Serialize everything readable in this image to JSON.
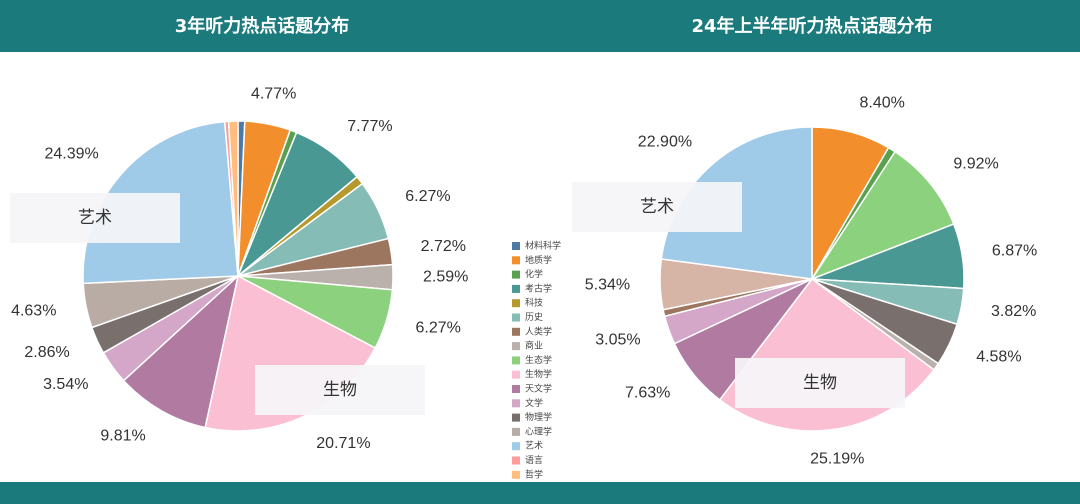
{
  "chart_data": [
    {
      "type": "pie",
      "title": "3年听力热点话题分布",
      "categories": [
        "材料科学",
        "地质学",
        "化学",
        "考古学",
        "科技",
        "历史",
        "人类学",
        "商业",
        "生态学",
        "生物学",
        "天文学",
        "文学",
        "物理学",
        "心理学",
        "艺术",
        "语言",
        "哲学"
      ],
      "values": [
        0.7,
        4.77,
        0.7,
        7.77,
        0.9,
        6.27,
        2.72,
        2.59,
        6.27,
        20.71,
        9.81,
        3.54,
        2.86,
        4.63,
        24.39,
        0.4,
        0.97
      ],
      "value_labels": [
        null,
        "4.77%",
        null,
        "7.77%",
        null,
        "6.27%",
        "2.72%",
        "2.59%",
        "6.27%",
        "20.71%",
        "9.81%",
        "3.54%",
        "2.86%",
        "4.63%",
        "24.39%",
        null,
        null
      ],
      "colors": [
        "#4e79a7",
        "#f28e2b",
        "#59a14f",
        "#499894",
        "#b6992d",
        "#86bcb6",
        "#9d7660",
        "#bab0ac",
        "#8cd17d",
        "#fabfd2",
        "#b07aa1",
        "#d4a6c8",
        "#79706e",
        "#b9aca4",
        "#a0cbe8",
        "#ff9d9a",
        "#ffbe7d"
      ],
      "annotations": [
        "艺术",
        "生物"
      ]
    },
    {
      "type": "pie",
      "title": "24年上半年听力热点话题分布",
      "categories": [
        "地质学",
        "化学",
        "生态学",
        "考古学",
        "历史",
        "物理学",
        "心理学",
        "生物学",
        "天文学",
        "文学",
        "人类学",
        "商业",
        "艺术"
      ],
      "values": [
        8.4,
        0.8,
        9.92,
        6.87,
        3.82,
        4.58,
        0.8,
        25.19,
        7.63,
        3.05,
        0.7,
        5.34,
        22.9
      ],
      "value_labels": [
        "8.40%",
        null,
        "9.92%",
        "6.87%",
        "3.82%",
        "4.58%",
        null,
        "25.19%",
        "7.63%",
        "3.05%",
        null,
        "5.34%",
        "22.90%"
      ],
      "colors": [
        "#f28e2b",
        "#59a14f",
        "#8cd17d",
        "#499894",
        "#86bcb6",
        "#79706e",
        "#bab0ac",
        "#fabfd2",
        "#b07aa1",
        "#d4a6c8",
        "#9d7660",
        "#d7b5a6",
        "#a0cbe8"
      ],
      "annotations": [
        "艺术",
        "生物"
      ]
    }
  ],
  "legend": {
    "categories": [
      "材料科学",
      "地质学",
      "化学",
      "考古学",
      "科技",
      "历史",
      "人类学",
      "商业",
      "生态学",
      "生物学",
      "天文学",
      "文学",
      "物理学",
      "心理学",
      "艺术",
      "语言",
      "哲学"
    ],
    "colors": [
      "#4e79a7",
      "#f28e2b",
      "#59a14f",
      "#499894",
      "#b6992d",
      "#86bcb6",
      "#9d7660",
      "#bab0ac",
      "#8cd17d",
      "#fabfd2",
      "#b07aa1",
      "#d4a6c8",
      "#79706e",
      "#b9aca4",
      "#a0cbe8",
      "#ff9d9a",
      "#ffbe7d"
    ]
  }
}
